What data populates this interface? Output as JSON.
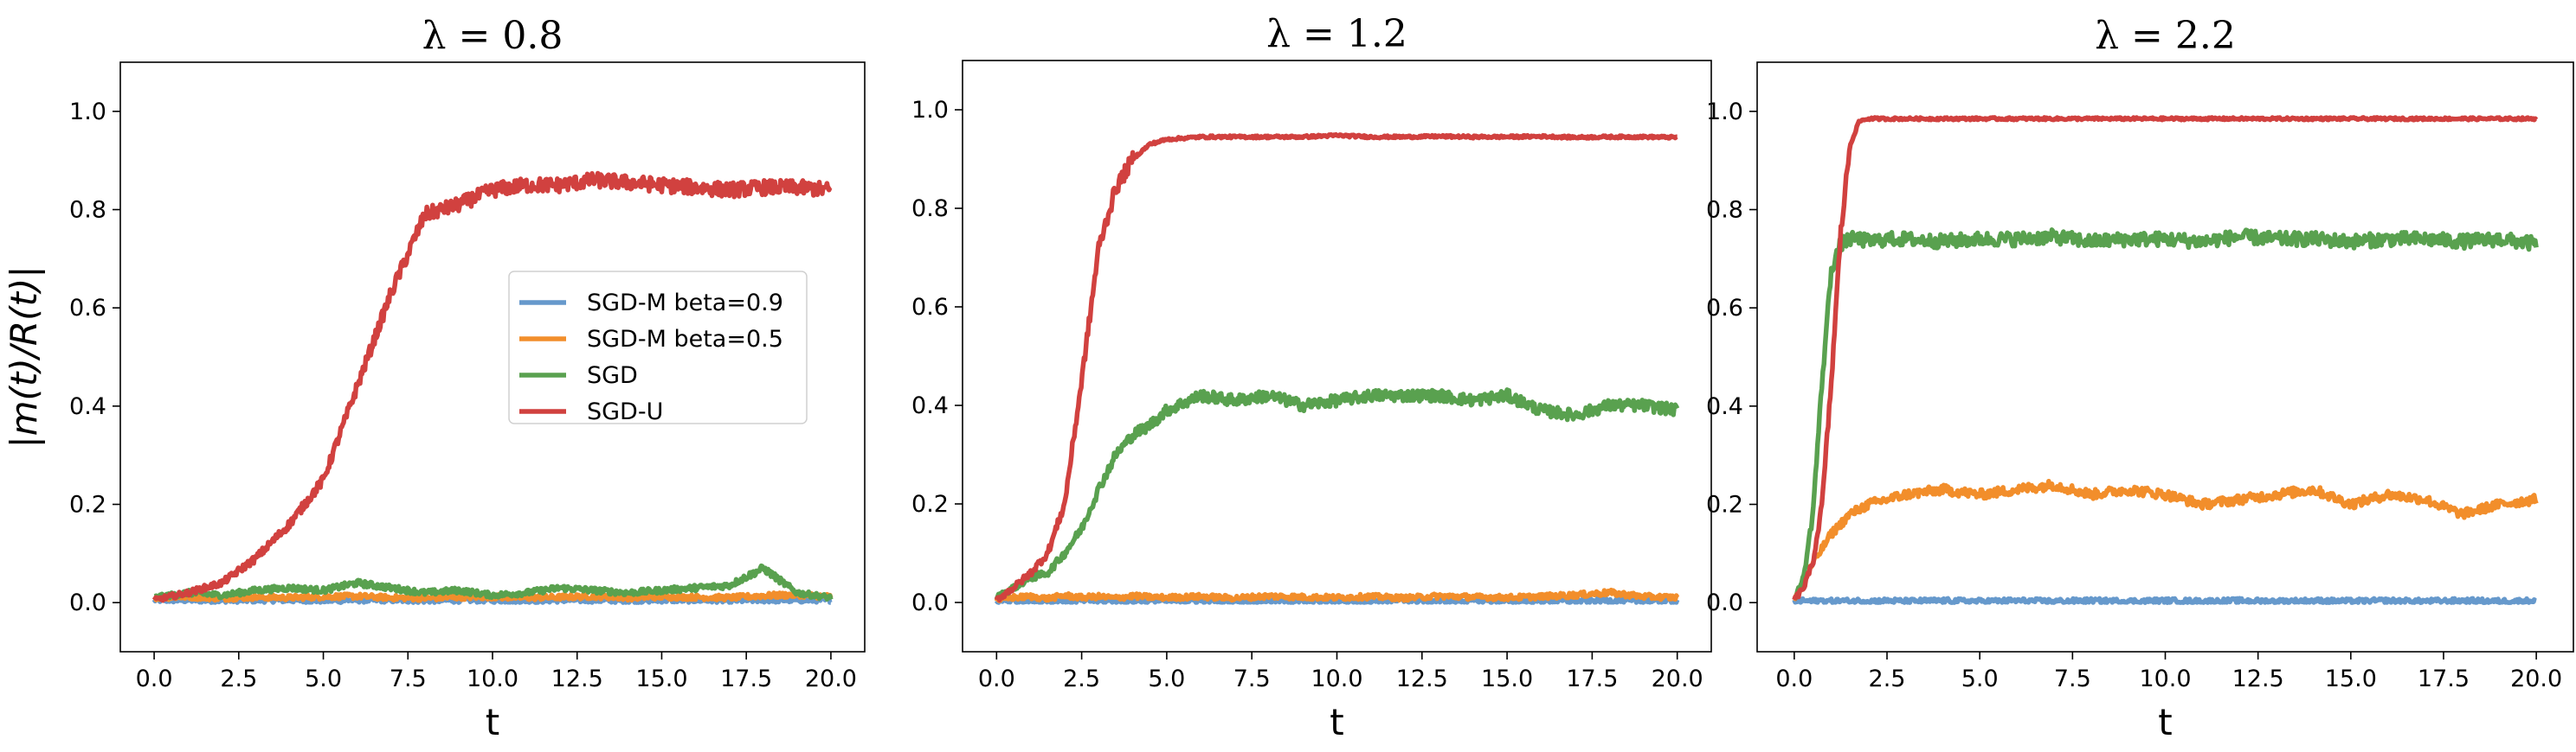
{
  "chart_data": [
    {
      "type": "line",
      "title": "λ = 0.8",
      "xlabel": "t",
      "ylabel": "|m(t)/R(t)|",
      "xlim": [
        -1.0,
        21.0
      ],
      "ylim": [
        -0.1,
        1.1
      ],
      "xticks": [
        "0.0",
        "2.5",
        "5.0",
        "7.5",
        "10.0",
        "12.5",
        "15.0",
        "17.5",
        "20.0"
      ],
      "yticks": [
        "0.0",
        "0.2",
        "0.4",
        "0.6",
        "0.8",
        "1.0"
      ],
      "grid": false,
      "legend": "center-right",
      "x": [
        0,
        1,
        2,
        3,
        4,
        5,
        6,
        7,
        8,
        9,
        10,
        11,
        12,
        13,
        14,
        15,
        16,
        17,
        18,
        19,
        20
      ],
      "series": [
        {
          "name": "SGD-M beta=0.9",
          "color": "#6699cc",
          "values": [
            0.005,
            0.005,
            0.004,
            0.005,
            0.005,
            0.004,
            0.005,
            0.005,
            0.004,
            0.005,
            0.005,
            0.004,
            0.005,
            0.005,
            0.004,
            0.005,
            0.005,
            0.004,
            0.005,
            0.005,
            0.005
          ]
        },
        {
          "name": "SGD-M beta=0.5",
          "color": "#f28e2b",
          "values": [
            0.01,
            0.012,
            0.009,
            0.011,
            0.01,
            0.012,
            0.013,
            0.01,
            0.009,
            0.011,
            0.012,
            0.01,
            0.011,
            0.013,
            0.01,
            0.012,
            0.011,
            0.01,
            0.014,
            0.016,
            0.012
          ]
        },
        {
          "name": "SGD",
          "color": "#59a14f",
          "values": [
            0.01,
            0.02,
            0.015,
            0.025,
            0.03,
            0.025,
            0.04,
            0.03,
            0.02,
            0.025,
            0.015,
            0.02,
            0.03,
            0.025,
            0.02,
            0.025,
            0.03,
            0.035,
            0.07,
            0.02,
            0.01
          ]
        },
        {
          "name": "SGD-U",
          "color": "#d1413f",
          "values": [
            0.005,
            0.02,
            0.04,
            0.09,
            0.16,
            0.25,
            0.44,
            0.63,
            0.79,
            0.81,
            0.84,
            0.85,
            0.85,
            0.86,
            0.855,
            0.85,
            0.845,
            0.84,
            0.845,
            0.845,
            0.84
          ]
        }
      ]
    },
    {
      "type": "line",
      "title": "λ = 1.2",
      "xlabel": "t",
      "ylabel": "",
      "xlim": [
        -1.0,
        21.0
      ],
      "ylim": [
        -0.1,
        1.1
      ],
      "xticks": [
        "0.0",
        "2.5",
        "5.0",
        "7.5",
        "10.0",
        "12.5",
        "15.0",
        "17.5",
        "20.0"
      ],
      "yticks": [
        "0.0",
        "0.2",
        "0.4",
        "0.6",
        "0.8",
        "1.0"
      ],
      "grid": false,
      "x": [
        0,
        0.5,
        1,
        1.5,
        2,
        2.5,
        3,
        3.5,
        4,
        4.5,
        5,
        6,
        7,
        8,
        9,
        10,
        11,
        12,
        13,
        14,
        15,
        16,
        17,
        18,
        19,
        20
      ],
      "series": [
        {
          "name": "SGD-M beta=0.9",
          "color": "#6699cc",
          "values": [
            0.003,
            0.004,
            0.003,
            0.004,
            0.003,
            0.004,
            0.003,
            0.004,
            0.003,
            0.004,
            0.003,
            0.004,
            0.003,
            0.004,
            0.003,
            0.004,
            0.003,
            0.004,
            0.003,
            0.004,
            0.003,
            0.004,
            0.003,
            0.004,
            0.003,
            0.004
          ]
        },
        {
          "name": "SGD-M beta=0.5",
          "color": "#f28e2b",
          "values": [
            0.005,
            0.01,
            0.012,
            0.008,
            0.014,
            0.01,
            0.012,
            0.009,
            0.013,
            0.011,
            0.01,
            0.012,
            0.009,
            0.013,
            0.011,
            0.01,
            0.012,
            0.009,
            0.013,
            0.011,
            0.01,
            0.012,
            0.015,
            0.02,
            0.012,
            0.01
          ]
        },
        {
          "name": "SGD",
          "color": "#59a14f",
          "values": [
            0.01,
            0.03,
            0.05,
            0.06,
            0.1,
            0.15,
            0.23,
            0.3,
            0.34,
            0.36,
            0.39,
            0.42,
            0.41,
            0.42,
            0.4,
            0.41,
            0.42,
            0.42,
            0.42,
            0.41,
            0.42,
            0.39,
            0.38,
            0.4,
            0.4,
            0.39
          ]
        },
        {
          "name": "SGD-U",
          "color": "#d1413f",
          "values": [
            0.005,
            0.03,
            0.06,
            0.1,
            0.2,
            0.45,
            0.72,
            0.84,
            0.9,
            0.93,
            0.94,
            0.945,
            0.945,
            0.945,
            0.945,
            0.948,
            0.945,
            0.945,
            0.946,
            0.945,
            0.945,
            0.946,
            0.944,
            0.945,
            0.945,
            0.944
          ]
        }
      ]
    },
    {
      "type": "line",
      "title": "λ = 2.2",
      "xlabel": "t",
      "ylabel": "",
      "xlim": [
        -1.0,
        21.0
      ],
      "ylim": [
        -0.1,
        1.1
      ],
      "xticks": [
        "0.0",
        "2.5",
        "5.0",
        "7.5",
        "10.0",
        "12.5",
        "15.0",
        "17.5",
        "20.0"
      ],
      "yticks": [
        "0.0",
        "0.2",
        "0.4",
        "0.6",
        "0.8",
        "1.0"
      ],
      "grid": false,
      "x": [
        0,
        0.25,
        0.5,
        0.75,
        1,
        1.25,
        1.5,
        1.75,
        2,
        2.5,
        3,
        4,
        5,
        6,
        7,
        8,
        9,
        10,
        11,
        12,
        13,
        14,
        15,
        16,
        17,
        18,
        19,
        20
      ],
      "series": [
        {
          "name": "SGD-M beta=0.9",
          "color": "#6699cc",
          "values": [
            0.003,
            0.004,
            0.003,
            0.004,
            0.003,
            0.004,
            0.003,
            0.004,
            0.003,
            0.004,
            0.003,
            0.004,
            0.003,
            0.004,
            0.003,
            0.004,
            0.003,
            0.004,
            0.003,
            0.004,
            0.003,
            0.004,
            0.003,
            0.004,
            0.003,
            0.004,
            0.003,
            0.004
          ]
        },
        {
          "name": "SGD-M beta=0.5",
          "color": "#f28e2b",
          "values": [
            0.005,
            0.04,
            0.08,
            0.11,
            0.14,
            0.16,
            0.18,
            0.19,
            0.2,
            0.21,
            0.22,
            0.23,
            0.22,
            0.23,
            0.24,
            0.22,
            0.23,
            0.22,
            0.2,
            0.21,
            0.22,
            0.23,
            0.2,
            0.22,
            0.21,
            0.18,
            0.2,
            0.21
          ]
        },
        {
          "name": "SGD",
          "color": "#59a14f",
          "values": [
            0.005,
            0.05,
            0.18,
            0.45,
            0.68,
            0.73,
            0.74,
            0.74,
            0.735,
            0.74,
            0.74,
            0.735,
            0.74,
            0.74,
            0.745,
            0.735,
            0.74,
            0.74,
            0.735,
            0.745,
            0.74,
            0.74,
            0.735,
            0.74,
            0.74,
            0.735,
            0.74,
            0.73
          ]
        },
        {
          "name": "SGD-U",
          "color": "#d1413f",
          "values": [
            0.005,
            0.03,
            0.08,
            0.2,
            0.45,
            0.75,
            0.93,
            0.98,
            0.985,
            0.985,
            0.985,
            0.985,
            0.985,
            0.985,
            0.985,
            0.985,
            0.985,
            0.985,
            0.985,
            0.985,
            0.985,
            0.985,
            0.985,
            0.985,
            0.985,
            0.985,
            0.985,
            0.985
          ]
        }
      ]
    }
  ]
}
